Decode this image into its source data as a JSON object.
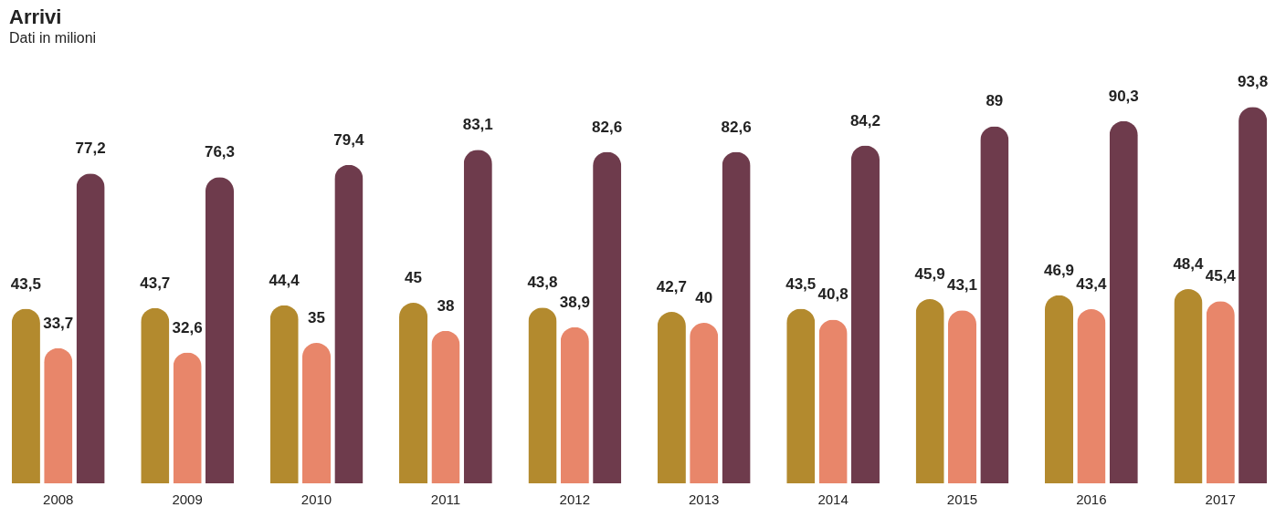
{
  "chart_data": {
    "type": "bar",
    "title": "Arrivi",
    "subtitle": "Dati in milioni",
    "categories": [
      "2008",
      "2009",
      "2010",
      "2011",
      "2012",
      "2013",
      "2014",
      "2015",
      "2016",
      "2017"
    ],
    "series": [
      {
        "color": "#b38a2e",
        "values": [
          43.5,
          43.7,
          44.4,
          45,
          43.8,
          42.7,
          43.5,
          45.9,
          46.9,
          48.4
        ],
        "value_labels": [
          "43,5",
          "43,7",
          "44,4",
          "45",
          "43,8",
          "42,7",
          "43,5",
          "45,9",
          "46,9",
          "48,4"
        ]
      },
      {
        "color": "#e8866a",
        "values": [
          33.7,
          32.6,
          35,
          38,
          38.9,
          40,
          40.8,
          43.1,
          43.4,
          45.4
        ],
        "value_labels": [
          "33,7",
          "32,6",
          "35",
          "38",
          "38,9",
          "40",
          "40,8",
          "43,1",
          "43,4",
          "45,4"
        ]
      },
      {
        "color": "#6e3b4c",
        "values": [
          77.2,
          76.3,
          79.4,
          83.1,
          82.6,
          82.6,
          84.2,
          89,
          90.3,
          93.8
        ],
        "value_labels": [
          "77,2",
          "76,3",
          "79,4",
          "83,1",
          "82,6",
          "82,6",
          "84,2",
          "89",
          "90,3",
          "93,8"
        ]
      }
    ]
  }
}
